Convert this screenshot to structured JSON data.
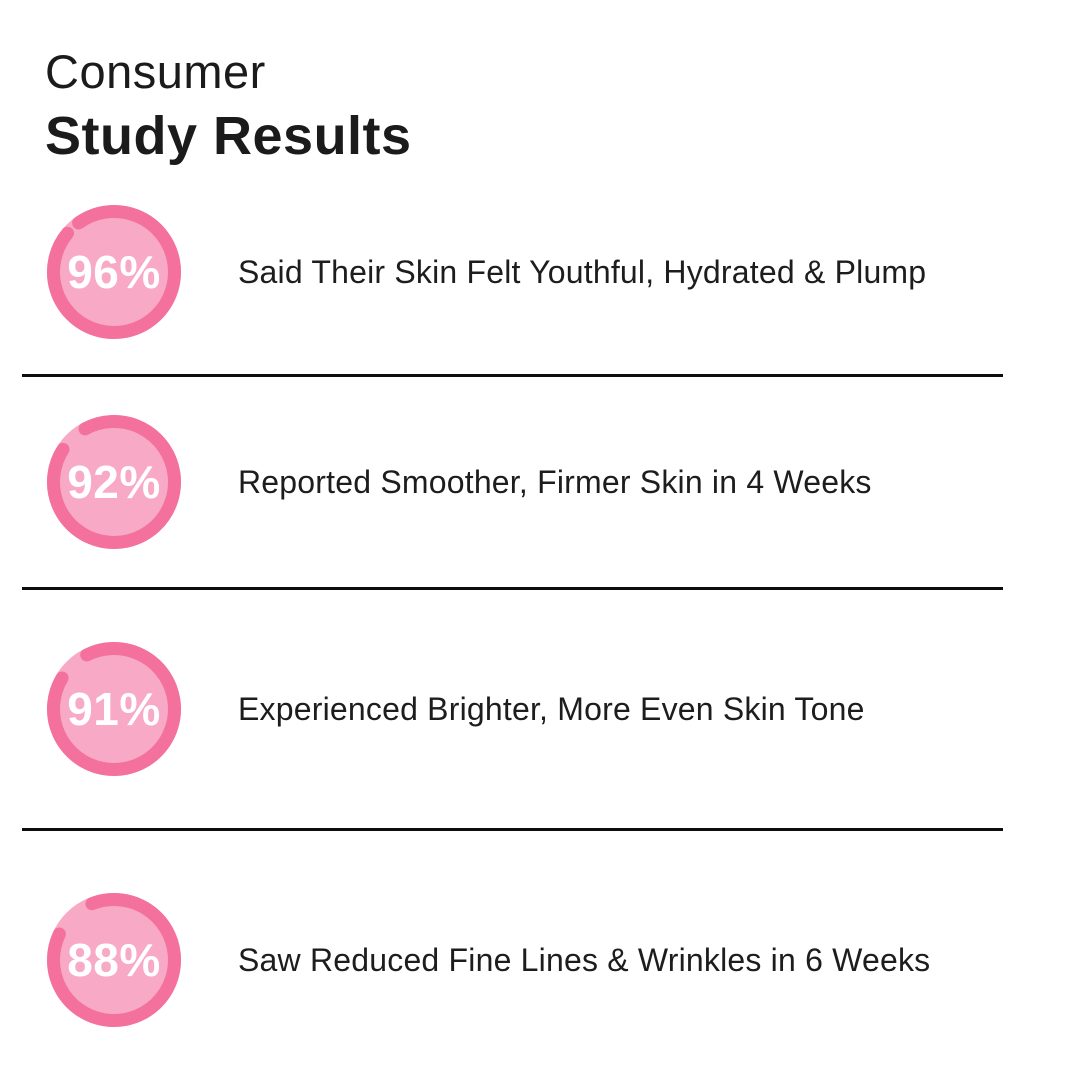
{
  "title": {
    "line1": "Consumer",
    "line2": "Study Results"
  },
  "colors": {
    "background": "#ffffff",
    "ring": "#f3719c",
    "ring_fill": "#f8a9c5",
    "percent_text": "#ffffff",
    "body_text": "#1d1d1d",
    "divider": "#0d0d0d"
  },
  "rows": [
    {
      "percent": 96,
      "percent_label": "96%",
      "label": "Said Their Skin Felt Youthful, Hydrated & Plump"
    },
    {
      "percent": 92,
      "percent_label": "92%",
      "label": "Reported Smoother, Firmer Skin in 4 Weeks"
    },
    {
      "percent": 91,
      "percent_label": "91%",
      "label": "Experienced Brighter, More Even Skin Tone"
    },
    {
      "percent": 88,
      "percent_label": "88%",
      "label": "Saw Reduced Fine Lines & Wrinkles in 6 Weeks"
    }
  ],
  "chart_data": {
    "type": "pie",
    "variant": "radial-progress-rings",
    "title": "Consumer Study Results",
    "categories": [
      "Said Their Skin Felt Youthful, Hydrated & Plump",
      "Reported Smoother, Firmer Skin in 4 Weeks",
      "Experienced Brighter, More Even Skin Tone",
      "Saw Reduced Fine Lines & Wrinkles in 6 Weeks"
    ],
    "values": [
      96,
      92,
      91,
      88
    ],
    "unit": "%",
    "value_range": [
      0,
      100
    ],
    "legend_position": "none",
    "grid": false
  }
}
